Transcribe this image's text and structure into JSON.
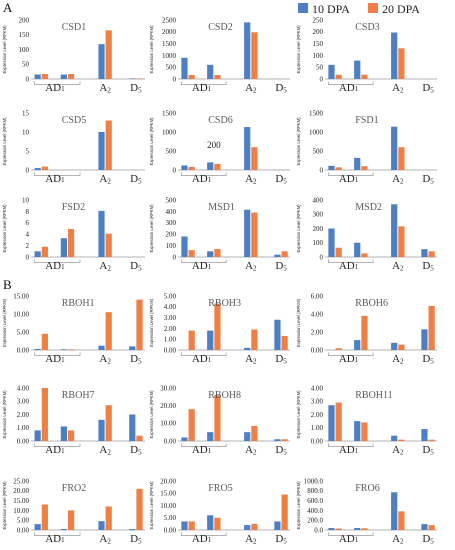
{
  "colors": {
    "s10": "#4e7fc2",
    "s20": "#ef7f45"
  },
  "legend": [
    "10 DPA",
    "20 DPA"
  ],
  "panel_labels": [
    "A",
    "B"
  ],
  "ylabel": "Expression Level (RPKM)",
  "chart_data": [
    {
      "type": "bar",
      "title": "CSD1",
      "yticks": [
        "0",
        "50",
        "100",
        "150",
        "200"
      ],
      "ylim": [
        0,
        200
      ],
      "categories": [
        "AD1-a",
        "AD1-b",
        "A2",
        "D5"
      ],
      "series": [
        {
          "name": "10 DPA",
          "values": [
            15,
            15,
            118,
            2
          ]
        },
        {
          "name": "20 DPA",
          "values": [
            17,
            17,
            165,
            2
          ]
        }
      ]
    },
    {
      "type": "bar",
      "title": "CSD2",
      "yticks": [
        "0",
        "500",
        "1000",
        "1500",
        "2000",
        "2500"
      ],
      "ylim": [
        0,
        2500
      ],
      "categories": [
        "AD1-a",
        "AD1-b",
        "A2",
        "D5"
      ],
      "series": [
        {
          "name": "10 DPA",
          "values": [
            900,
            600,
            2400,
            5
          ]
        },
        {
          "name": "20 DPA",
          "values": [
            170,
            170,
            1980,
            5
          ]
        }
      ]
    },
    {
      "type": "bar",
      "title": "CSD3",
      "yticks": [
        "0",
        "50",
        "100",
        "150",
        "200",
        "250"
      ],
      "ylim": [
        0,
        250
      ],
      "categories": [
        "AD1-a",
        "AD1-b",
        "A2",
        "D5"
      ],
      "series": [
        {
          "name": "10 DPA",
          "values": [
            60,
            78,
            197,
            0
          ]
        },
        {
          "name": "20 DPA",
          "values": [
            18,
            18,
            130,
            0
          ]
        }
      ]
    },
    {
      "type": "bar",
      "title": "CSD5",
      "yticks": [
        "0",
        "5",
        "10",
        "15"
      ],
      "ylim": [
        0,
        15
      ],
      "categories": [
        "AD1-a",
        "AD1-b",
        "A2",
        "D5"
      ],
      "series": [
        {
          "name": "10 DPA",
          "values": [
            0.5,
            0,
            10,
            0
          ]
        },
        {
          "name": "20 DPA",
          "values": [
            0.9,
            0,
            13,
            0
          ]
        }
      ]
    },
    {
      "type": "bar",
      "title": "CSD6",
      "annotation": "200",
      "yticks": [
        "0",
        "500",
        "1000",
        "1500"
      ],
      "ylim": [
        0,
        1500
      ],
      "categories": [
        "AD1-a",
        "AD1-b",
        "A2",
        "D5"
      ],
      "series": [
        {
          "name": "10 DPA",
          "values": [
            120,
            200,
            1130,
            5
          ]
        },
        {
          "name": "20 DPA",
          "values": [
            80,
            160,
            600,
            5
          ]
        }
      ]
    },
    {
      "type": "bar",
      "title": "FSD1",
      "yticks": [
        "0",
        "500",
        "1000",
        "1500"
      ],
      "ylim": [
        0,
        1500
      ],
      "categories": [
        "AD1-a",
        "AD1-b",
        "A2",
        "D5"
      ],
      "series": [
        {
          "name": "10 DPA",
          "values": [
            110,
            320,
            1140,
            0
          ]
        },
        {
          "name": "20 DPA",
          "values": [
            70,
            100,
            600,
            0
          ]
        }
      ]
    },
    {
      "type": "bar",
      "title": "FSD2",
      "yticks": [
        "0",
        "2",
        "4",
        "6",
        "8",
        "10"
      ],
      "ylim": [
        0,
        10
      ],
      "categories": [
        "AD1-a",
        "AD1-b",
        "A2",
        "D5"
      ],
      "series": [
        {
          "name": "10 DPA",
          "values": [
            1,
            3.3,
            8.1,
            0
          ]
        },
        {
          "name": "20 DPA",
          "values": [
            1.8,
            4.9,
            4.1,
            0
          ]
        }
      ]
    },
    {
      "type": "bar",
      "title": "MSD1",
      "yticks": [
        "0",
        "100",
        "200",
        "300",
        "400",
        "500"
      ],
      "ylim": [
        0,
        500
      ],
      "categories": [
        "AD1-a",
        "AD1-b",
        "A2",
        "D5"
      ],
      "series": [
        {
          "name": "10 DPA",
          "values": [
            180,
            50,
            415,
            20
          ]
        },
        {
          "name": "20 DPA",
          "values": [
            60,
            70,
            390,
            50
          ]
        }
      ]
    },
    {
      "type": "bar",
      "title": "MSD2",
      "yticks": [
        "0",
        "100",
        "200",
        "300",
        "400"
      ],
      "ylim": [
        0,
        400
      ],
      "categories": [
        "AD1-a",
        "AD1-b",
        "A2",
        "D5"
      ],
      "series": [
        {
          "name": "10 DPA",
          "values": [
            200,
            100,
            370,
            55
          ]
        },
        {
          "name": "20 DPA",
          "values": [
            65,
            25,
            215,
            40
          ]
        }
      ]
    },
    {
      "type": "bar",
      "title": "RBOH1",
      "yticks": [
        "0.00",
        "5.00",
        "10.00",
        "15.00"
      ],
      "ylim": [
        0,
        15
      ],
      "categories": [
        "AD1-a",
        "AD1-b",
        "A2",
        "D5"
      ],
      "series": [
        {
          "name": "10 DPA",
          "values": [
            0.3,
            0.2,
            1.2,
            1
          ]
        },
        {
          "name": "20 DPA",
          "values": [
            4.5,
            0.2,
            10.5,
            14
          ]
        }
      ]
    },
    {
      "type": "bar",
      "title": "RBOH3",
      "yticks": [
        "0.00",
        "1.00",
        "2.00",
        "3.00",
        "4.00",
        "5.00"
      ],
      "ylim": [
        0,
        5
      ],
      "categories": [
        "AD1-a",
        "AD1-b",
        "A2",
        "D5"
      ],
      "series": [
        {
          "name": "10 DPA",
          "values": [
            0,
            1.8,
            0.2,
            2.8
          ]
        },
        {
          "name": "20 DPA",
          "values": [
            1.8,
            4.3,
            1.9,
            1.3
          ]
        }
      ]
    },
    {
      "type": "bar",
      "title": "RBOH6",
      "yticks": [
        "0.00",
        "2.00",
        "4.00",
        "6.00"
      ],
      "ylim": [
        0,
        6
      ],
      "categories": [
        "AD1-a",
        "AD1-b",
        "A2",
        "D5"
      ],
      "series": [
        {
          "name": "10 DPA",
          "values": [
            0,
            1.1,
            0.8,
            2.3
          ]
        },
        {
          "name": "20 DPA",
          "values": [
            0.2,
            3.8,
            0.6,
            4.9
          ]
        }
      ]
    },
    {
      "type": "bar",
      "title": "RBOH7",
      "yticks": [
        "0.00",
        "1.00",
        "2.00",
        "3.00",
        "4.00"
      ],
      "ylim": [
        0,
        4
      ],
      "categories": [
        "AD1-a",
        "AD1-b",
        "A2",
        "D5"
      ],
      "series": [
        {
          "name": "10 DPA",
          "values": [
            0.8,
            1.1,
            1.6,
            2
          ]
        },
        {
          "name": "20 DPA",
          "values": [
            4,
            0.8,
            2.7,
            0.4
          ]
        }
      ]
    },
    {
      "type": "bar",
      "title": "RBOH8",
      "yticks": [
        "0.00",
        "10.00",
        "20.00",
        "30.00"
      ],
      "ylim": [
        0,
        30
      ],
      "categories": [
        "AD1-a",
        "AD1-b",
        "A2",
        "D5"
      ],
      "series": [
        {
          "name": "10 DPA",
          "values": [
            2,
            5,
            5,
            1
          ]
        },
        {
          "name": "20 DPA",
          "values": [
            18,
            26,
            8.5,
            1
          ]
        }
      ]
    },
    {
      "type": "bar",
      "title": "RBOH11",
      "yticks": [
        "0.00",
        "1.00",
        "2.00",
        "3.00",
        "4.00"
      ],
      "ylim": [
        0,
        4
      ],
      "categories": [
        "AD1-a",
        "AD1-b",
        "A2",
        "D5"
      ],
      "series": [
        {
          "name": "10 DPA",
          "values": [
            2.7,
            1.5,
            0.4,
            0.9
          ]
        },
        {
          "name": "20 DPA",
          "values": [
            2.9,
            1.4,
            0.1,
            0.1
          ]
        }
      ]
    },
    {
      "type": "bar",
      "title": "FRO2",
      "yticks": [
        "0.00",
        "5.00",
        "10.00",
        "15.00",
        "20.00",
        "25.00"
      ],
      "ylim": [
        0,
        25
      ],
      "categories": [
        "AD1-a",
        "AD1-b",
        "A2",
        "D5"
      ],
      "series": [
        {
          "name": "10 DPA",
          "values": [
            3,
            0.5,
            4.5,
            0.5
          ]
        },
        {
          "name": "20 DPA",
          "values": [
            13,
            10,
            12,
            21
          ]
        }
      ]
    },
    {
      "type": "bar",
      "title": "FRO5",
      "yticks": [
        "0.00",
        "5.00",
        "10.00",
        "15.00",
        "20.00"
      ],
      "ylim": [
        0,
        20
      ],
      "categories": [
        "AD1-a",
        "AD1-b",
        "A2",
        "D5"
      ],
      "series": [
        {
          "name": "10 DPA",
          "values": [
            3.5,
            6,
            2,
            3.5
          ]
        },
        {
          "name": "20 DPA",
          "values": [
            3.5,
            5,
            2.5,
            14.5
          ]
        }
      ]
    },
    {
      "type": "bar",
      "title": "FRO6",
      "yticks": [
        "0.0",
        "200.0",
        "400.0",
        "600.0",
        "800.0",
        "1000.0"
      ],
      "ylim": [
        0,
        1000
      ],
      "categories": [
        "AD1-a",
        "AD1-b",
        "A2",
        "D5"
      ],
      "series": [
        {
          "name": "10 DPA",
          "values": [
            40,
            40,
            770,
            120
          ]
        },
        {
          "name": "20 DPA",
          "values": [
            30,
            35,
            380,
            100
          ]
        }
      ]
    }
  ]
}
